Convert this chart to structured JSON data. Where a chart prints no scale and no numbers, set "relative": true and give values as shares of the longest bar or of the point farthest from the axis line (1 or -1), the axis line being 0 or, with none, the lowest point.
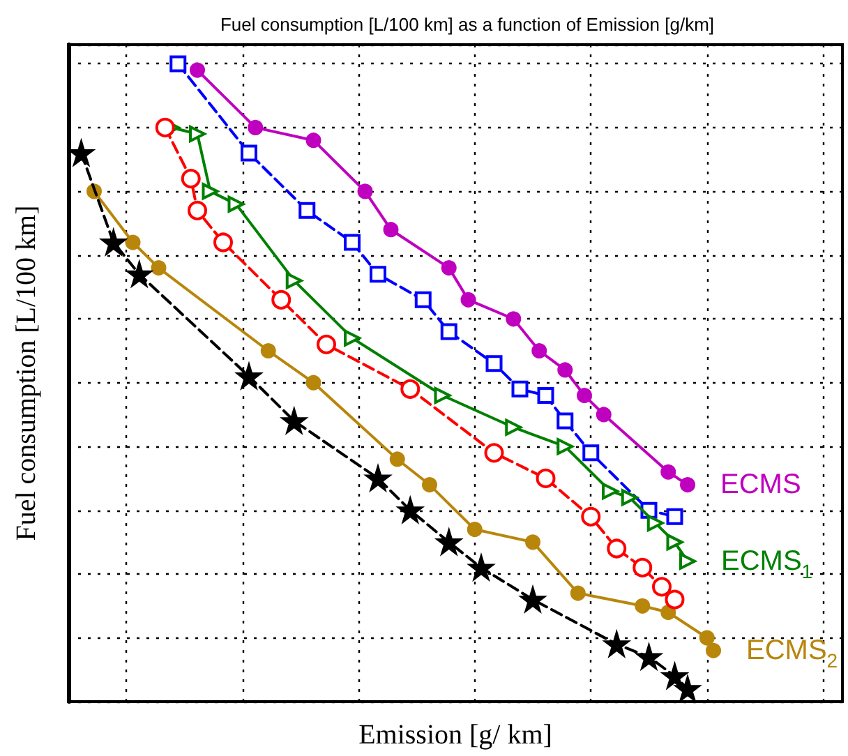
{
  "chart_data": {
    "type": "line",
    "relative": true,
    "title": "Fuel consumption [L/100 km] as a function of Emission [g/km]",
    "xlabel": "Emission [g/ km]",
    "ylabel": "Fuel consumption [L/100 km]",
    "grid": true,
    "categories": [
      null,
      null,
      null,
      null,
      null,
      null,
      null,
      null,
      null,
      null,
      null,
      null,
      null,
      null,
      null,
      null,
      null,
      null,
      null,
      null,
      null,
      null,
      null,
      null,
      null,
      null,
      null,
      null,
      null,
      null,
      null,
      null,
      null,
      null,
      null,
      null,
      null,
      null,
      null,
      null,
      null,
      null,
      null,
      null,
      null,
      null,
      null,
      null,
      null,
      null,
      null,
      null,
      null,
      null,
      null,
      null,
      null,
      null,
      null,
      null,
      null,
      null,
      null,
      null,
      null,
      null,
      null,
      null,
      null,
      null,
      null,
      null,
      null,
      null,
      null,
      null,
      null,
      null,
      null,
      null,
      null,
      null,
      null,
      null,
      null,
      null,
      null,
      null,
      null,
      null,
      null,
      null,
      null,
      null,
      null,
      null,
      null,
      null,
      null,
      null,
      null,
      null,
      null,
      null,
      null,
      null,
      null,
      null,
      null,
      null,
      null,
      null,
      null,
      null,
      null,
      null,
      null,
      null,
      null,
      null,
      null
    ],
    "series": [
      {
        "name": "ECMS",
        "color": "#bf00bf",
        "marker": "circle",
        "line_style": "solid",
        "values": [
          null,
          null,
          null,
          null,
          null,
          null,
          null,
          null,
          null,
          null,
          null,
          null,
          null,
          null,
          null,
          null,
          null,
          null,
          null,
          null,
          0.99,
          null,
          null,
          null,
          null,
          null,
          null,
          null,
          null,
          0.9,
          null,
          null,
          null,
          null,
          null,
          null,
          null,
          null,
          0.88,
          null,
          null,
          null,
          null,
          null,
          null,
          null,
          0.8,
          null,
          null,
          null,
          0.74,
          null,
          null,
          null,
          null,
          null,
          null,
          null,
          null,
          0.68,
          null,
          null,
          0.63,
          null,
          null,
          null,
          null,
          null,
          null,
          0.6,
          null,
          null,
          null,
          0.55,
          null,
          null,
          null,
          0.52,
          null,
          null,
          0.48,
          null,
          null,
          0.45,
          null,
          null,
          null,
          null,
          null,
          null,
          null,
          null,
          null,
          0.36,
          null,
          null,
          0.34,
          null,
          null,
          null,
          null,
          null,
          null,
          null,
          null,
          null,
          null,
          null,
          null,
          null,
          null,
          null,
          null,
          null,
          null,
          null,
          null,
          null,
          null,
          null,
          null
        ]
      },
      {
        "color": "#0000ff",
        "marker": "square",
        "line_style": "dashed",
        "values": [
          null,
          null,
          null,
          null,
          null,
          null,
          null,
          null,
          null,
          null,
          null,
          null,
          null,
          null,
          null,
          null,
          null,
          1.0,
          null,
          null,
          null,
          null,
          null,
          null,
          null,
          null,
          null,
          null,
          0.86,
          null,
          null,
          null,
          null,
          null,
          null,
          null,
          null,
          0.77,
          null,
          null,
          null,
          null,
          null,
          null,
          0.72,
          null,
          null,
          null,
          0.67,
          null,
          null,
          null,
          null,
          null,
          null,
          0.63,
          null,
          null,
          null,
          0.58,
          null,
          null,
          null,
          null,
          null,
          null,
          0.53,
          null,
          null,
          null,
          0.49,
          null,
          null,
          null,
          0.48,
          null,
          null,
          0.44,
          null,
          null,
          null,
          0.39,
          null,
          null,
          null,
          null,
          null,
          null,
          null,
          null,
          0.3,
          null,
          null,
          null,
          0.29,
          null,
          null,
          null,
          null,
          null,
          null,
          null,
          null,
          null,
          null,
          null,
          null,
          null,
          null,
          null,
          null,
          null,
          null,
          null,
          null,
          null,
          null,
          null,
          null,
          null,
          null
        ]
      },
      {
        "color": "#ff0000",
        "marker": "circle",
        "line_style": "dashed",
        "values": [
          null,
          null,
          null,
          null,
          null,
          null,
          null,
          null,
          null,
          null,
          null,
          null,
          null,
          null,
          null,
          0.9,
          null,
          null,
          null,
          0.82,
          0.77,
          null,
          null,
          null,
          0.72,
          null,
          null,
          null,
          null,
          null,
          null,
          null,
          null,
          0.63,
          null,
          null,
          null,
          null,
          null,
          null,
          0.56,
          null,
          null,
          null,
          null,
          null,
          null,
          null,
          null,
          null,
          null,
          null,
          null,
          0.49,
          null,
          null,
          null,
          null,
          null,
          null,
          null,
          null,
          null,
          null,
          null,
          null,
          0.39,
          null,
          null,
          null,
          null,
          null,
          null,
          null,
          0.35,
          null,
          null,
          null,
          null,
          null,
          null,
          0.29,
          null,
          null,
          null,
          0.24,
          null,
          null,
          null,
          0.21,
          null,
          null,
          0.18,
          null,
          0.16,
          null,
          null,
          null,
          null,
          null,
          null,
          null,
          null,
          null,
          null,
          null,
          null,
          null,
          null,
          null,
          null,
          null,
          null,
          null,
          null,
          null,
          null,
          null,
          null,
          null,
          null
        ]
      },
      {
        "name": "ECMS$_{1}$",
        "color": "#008000",
        "marker": "triangle",
        "line_style": "solid",
        "values": [
          null,
          null,
          null,
          null,
          null,
          null,
          null,
          null,
          null,
          null,
          null,
          null,
          null,
          null,
          null,
          null,
          0.9,
          null,
          null,
          null,
          0.89,
          null,
          0.8,
          null,
          null,
          null,
          0.78,
          null,
          null,
          null,
          null,
          null,
          null,
          null,
          null,
          0.66,
          null,
          null,
          null,
          null,
          null,
          null,
          null,
          null,
          0.57,
          null,
          null,
          null,
          null,
          null,
          null,
          null,
          null,
          null,
          null,
          null,
          null,
          null,
          0.48,
          null,
          null,
          null,
          null,
          null,
          null,
          null,
          null,
          null,
          null,
          0.43,
          null,
          null,
          null,
          null,
          null,
          null,
          null,
          0.4,
          null,
          null,
          null,
          null,
          null,
          null,
          0.33,
          null,
          null,
          0.32,
          null,
          null,
          null,
          0.28,
          null,
          null,
          0.25,
          null,
          0.22,
          null,
          null,
          null,
          null,
          null,
          null,
          null,
          null,
          null,
          null,
          null,
          null,
          null,
          null,
          null,
          null,
          null,
          null,
          null,
          null,
          null,
          null,
          null,
          null
        ]
      },
      {
        "name": "ECMS$_{2}$",
        "color": "#b8860b",
        "marker": "circle",
        "line_style": "solid",
        "values": [
          null,
          null,
          null,
          null,
          0.8,
          null,
          null,
          null,
          null,
          null,
          0.72,
          null,
          null,
          null,
          0.68,
          null,
          null,
          null,
          null,
          null,
          null,
          null,
          null,
          null,
          null,
          null,
          null,
          null,
          null,
          null,
          null,
          0.55,
          null,
          null,
          null,
          null,
          null,
          null,
          0.5,
          null,
          null,
          null,
          null,
          null,
          null,
          null,
          null,
          null,
          null,
          null,
          null,
          0.38,
          null,
          null,
          null,
          null,
          0.34,
          null,
          null,
          null,
          null,
          null,
          null,
          0.27,
          null,
          null,
          null,
          null,
          null,
          null,
          null,
          null,
          0.25,
          null,
          null,
          null,
          null,
          null,
          null,
          0.17,
          null,
          null,
          null,
          null,
          null,
          null,
          null,
          null,
          null,
          0.15,
          null,
          null,
          null,
          0.14,
          null,
          null,
          null,
          null,
          null,
          0.1,
          0.08,
          null,
          null,
          null,
          null,
          null,
          null,
          null,
          null,
          null,
          null,
          null,
          null,
          null,
          null,
          null,
          null,
          null,
          null,
          null,
          null
        ]
      },
      {
        "color": "#000000",
        "marker": "star",
        "line_style": "dashed",
        "values": [
          null,
          null,
          0.86,
          null,
          null,
          null,
          null,
          0.72,
          null,
          null,
          null,
          0.67,
          null,
          null,
          null,
          null,
          null,
          null,
          null,
          null,
          null,
          null,
          null,
          null,
          null,
          null,
          null,
          null,
          0.51,
          null,
          null,
          null,
          null,
          null,
          null,
          0.44,
          null,
          null,
          null,
          null,
          null,
          null,
          null,
          null,
          null,
          null,
          null,
          null,
          0.35,
          null,
          null,
          null,
          null,
          0.3,
          null,
          null,
          null,
          null,
          null,
          0.25,
          null,
          null,
          null,
          null,
          0.21,
          null,
          null,
          null,
          null,
          null,
          null,
          null,
          0.16,
          null,
          null,
          null,
          null,
          null,
          null,
          null,
          null,
          null,
          null,
          null,
          null,
          0.09,
          null,
          null,
          null,
          null,
          0.07,
          null,
          null,
          null,
          0.04,
          null,
          0.02,
          null,
          null,
          null,
          null,
          null,
          null,
          null,
          null,
          null,
          null,
          null,
          null,
          null,
          null,
          null,
          null,
          null,
          null,
          null,
          null,
          null,
          null,
          null,
          null
        ]
      }
    ]
  }
}
